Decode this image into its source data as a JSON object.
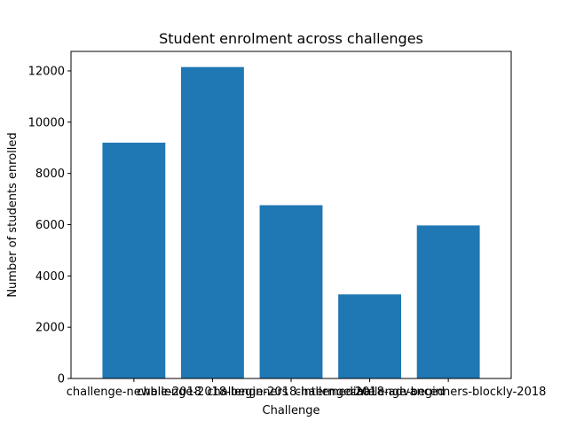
{
  "chart_data": {
    "type": "bar",
    "title": "Student enrolment across challenges",
    "xlabel": "Challenge",
    "ylabel": "Number of students enrolled",
    "categories": [
      "challenge-newbie-2018",
      "challenge-2018-beginners",
      "challenge-2018-intermediate",
      "challenge-2018-advanced",
      "challenge-beginners-blockly-2018"
    ],
    "values": [
      9200,
      12150,
      6760,
      3280,
      5970
    ],
    "ylim": [
      0,
      12760
    ],
    "yticks": [
      0,
      2000,
      4000,
      6000,
      8000,
      10000,
      12000
    ],
    "bar_color": "#1f77b4",
    "grid": false,
    "legend": "none"
  }
}
